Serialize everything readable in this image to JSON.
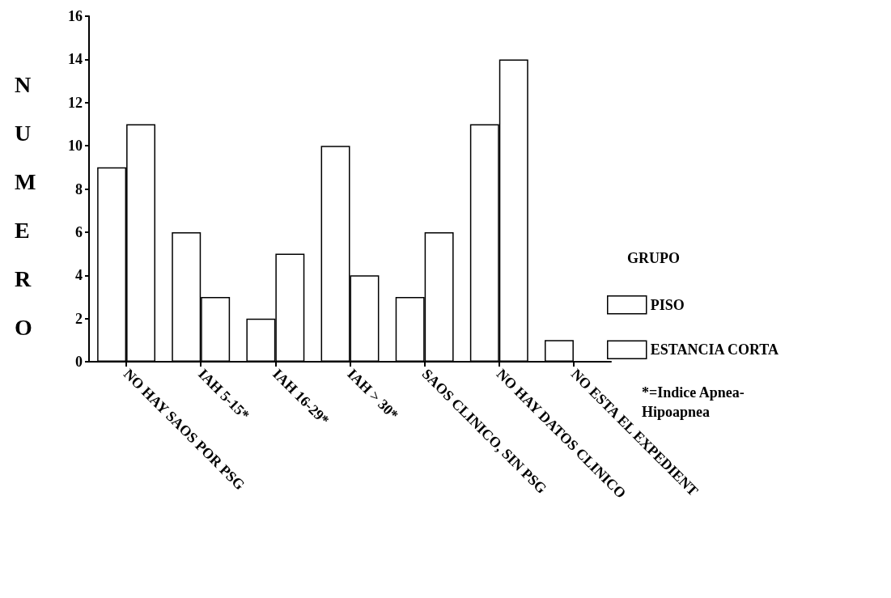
{
  "chart_data": {
    "type": "bar",
    "ylabel": "NUMERO",
    "legend_title": "GRUPO",
    "categories": [
      "NO HAY SAOS POR PSG",
      "IAH 5-15*",
      "IAH 16-29*",
      "IAH > 30*",
      "SAOS CLINICO, SIN PSG",
      "NO HAY DATOS CLINICO",
      "NO ESTA EL EXPEDIENT"
    ],
    "series": [
      {
        "name": "PISO",
        "color": "#ffffff",
        "values": [
          9,
          6,
          2,
          10,
          3,
          11,
          1
        ]
      },
      {
        "name": "ESTANCIA CORTA",
        "color": "#ffffff",
        "values": [
          11,
          3,
          5,
          4,
          6,
          14,
          null
        ]
      }
    ],
    "ylim": [
      0,
      16
    ],
    "yticks": [
      0,
      2,
      4,
      6,
      8,
      10,
      12,
      14,
      16
    ],
    "grid": false,
    "legend": "right",
    "annotations": [
      "*=Indice Apnea-\nHipoapnea"
    ]
  }
}
